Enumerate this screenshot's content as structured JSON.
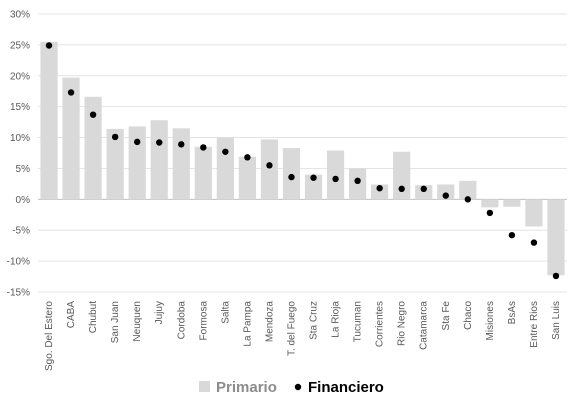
{
  "chart_data": {
    "type": "bar",
    "categories": [
      "Sgo. Del Estero",
      "CABA",
      "Chubut",
      "San Juan",
      "Neuquen",
      "Jujuy",
      "Cordoba",
      "Formosa",
      "Salta",
      "La Pampa",
      "Mendoza",
      "T. del Fuego",
      "Sta Cruz",
      "La Rioja",
      "Tucuman",
      "Corrientes",
      "Rio Negro",
      "Catamarca",
      "Sta Fe",
      "Chaco",
      "Misiones",
      "BsAs",
      "Entre Rios",
      "San Luis"
    ],
    "series": [
      {
        "name": "Primario",
        "kind": "bar",
        "color": "#d9d9d9",
        "values": [
          25.5,
          19.7,
          16.6,
          11.4,
          11.8,
          12.8,
          11.5,
          8.5,
          10.0,
          6.9,
          9.7,
          8.3,
          4.0,
          7.9,
          5.0,
          2.4,
          7.7,
          2.3,
          2.4,
          3.0,
          -1.3,
          -1.2,
          -4.4,
          -12.3
        ]
      },
      {
        "name": "Financiero",
        "kind": "dot",
        "color": "#000000",
        "values": [
          24.9,
          17.3,
          13.7,
          10.1,
          9.3,
          9.2,
          8.9,
          8.4,
          7.7,
          6.8,
          5.5,
          3.6,
          3.5,
          3.3,
          3.0,
          1.8,
          1.7,
          1.7,
          0.6,
          0.0,
          -2.2,
          -5.8,
          -7.0,
          -12.4
        ]
      }
    ],
    "yticks": [
      "30%",
      "25%",
      "20%",
      "15%",
      "10%",
      "5%",
      "0%",
      "-5%",
      "-10%",
      "-15%"
    ],
    "ylim": [
      -15,
      30
    ],
    "grid": true,
    "legend_position": "bottom"
  }
}
